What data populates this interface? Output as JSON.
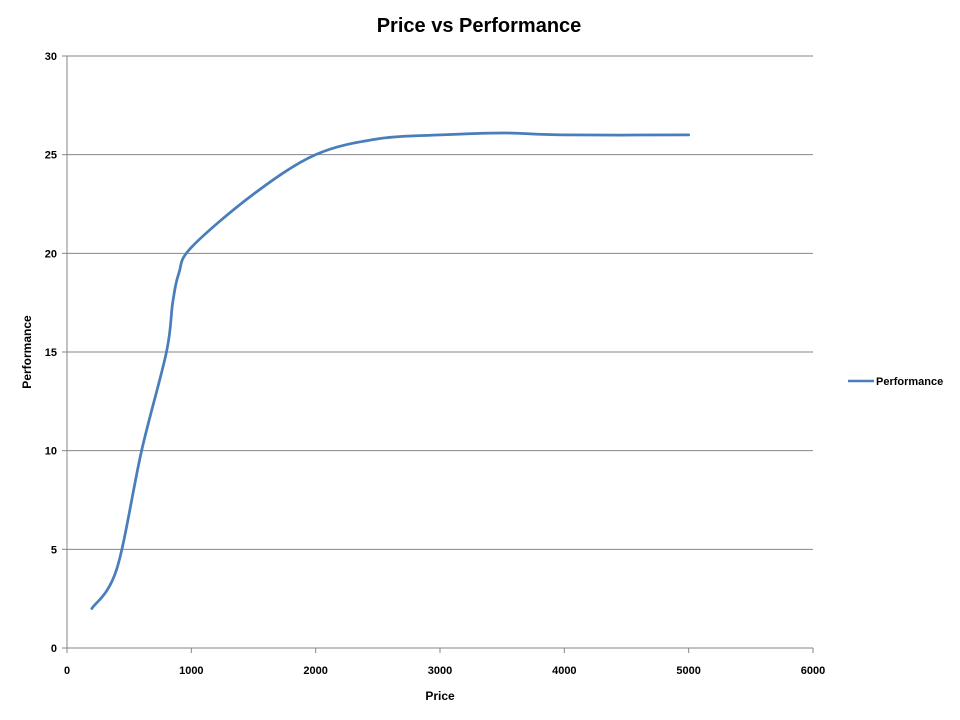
{
  "chart_data": {
    "type": "line",
    "title": "Price vs Performance",
    "xlabel": "Price",
    "ylabel": "Performance",
    "xlim": [
      0,
      6000
    ],
    "ylim": [
      0,
      30
    ],
    "x_ticks": [
      "0",
      "1000",
      "2000",
      "3000",
      "4000",
      "5000",
      "6000"
    ],
    "y_ticks": [
      "0",
      "5",
      "10",
      "15",
      "20",
      "25",
      "30"
    ],
    "grid": "horizontal",
    "legend_position": "right",
    "series_color": "#4a7ebb",
    "series": [
      {
        "name": "Performance",
        "x": [
          200,
          400,
          600,
          800,
          850,
          900,
          1000,
          1500,
          2000,
          2500,
          3000,
          3500,
          4000,
          5000
        ],
        "y": [
          2,
          4,
          10,
          15,
          17.5,
          19,
          20.3,
          23,
          25,
          25.8,
          26,
          26.1,
          26,
          26
        ]
      }
    ]
  }
}
